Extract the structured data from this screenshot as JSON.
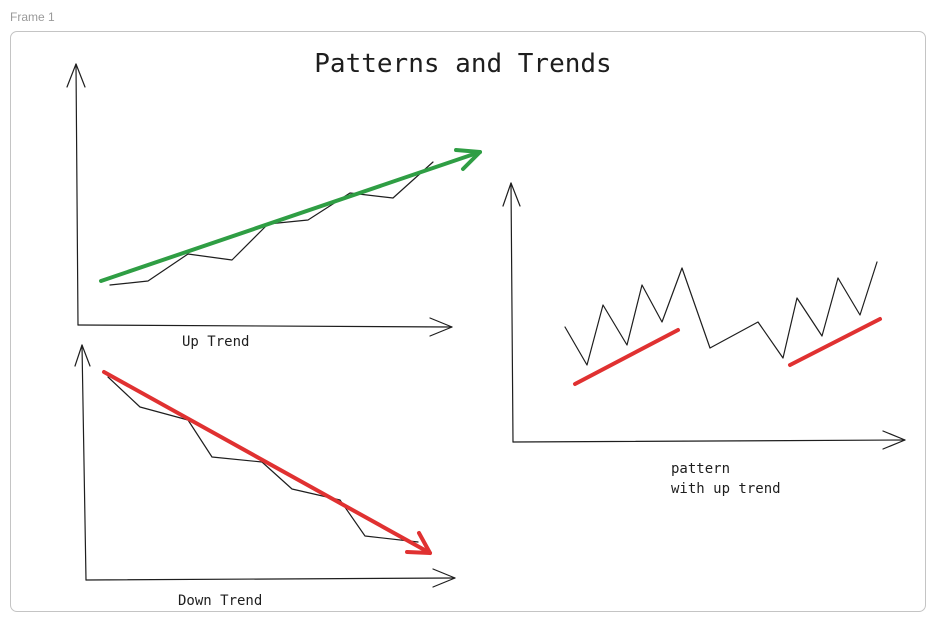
{
  "frame": {
    "label": "Frame 1"
  },
  "title": "Patterns and Trends",
  "charts": {
    "up_trend": {
      "label": "Up Trend",
      "arrow_color": "#2f9e44"
    },
    "down_trend": {
      "label": "Down Trend",
      "arrow_color": "#e03131"
    },
    "pattern": {
      "label_line1": "pattern",
      "label_line2": "with up trend",
      "trend_color": "#e03131"
    }
  }
}
